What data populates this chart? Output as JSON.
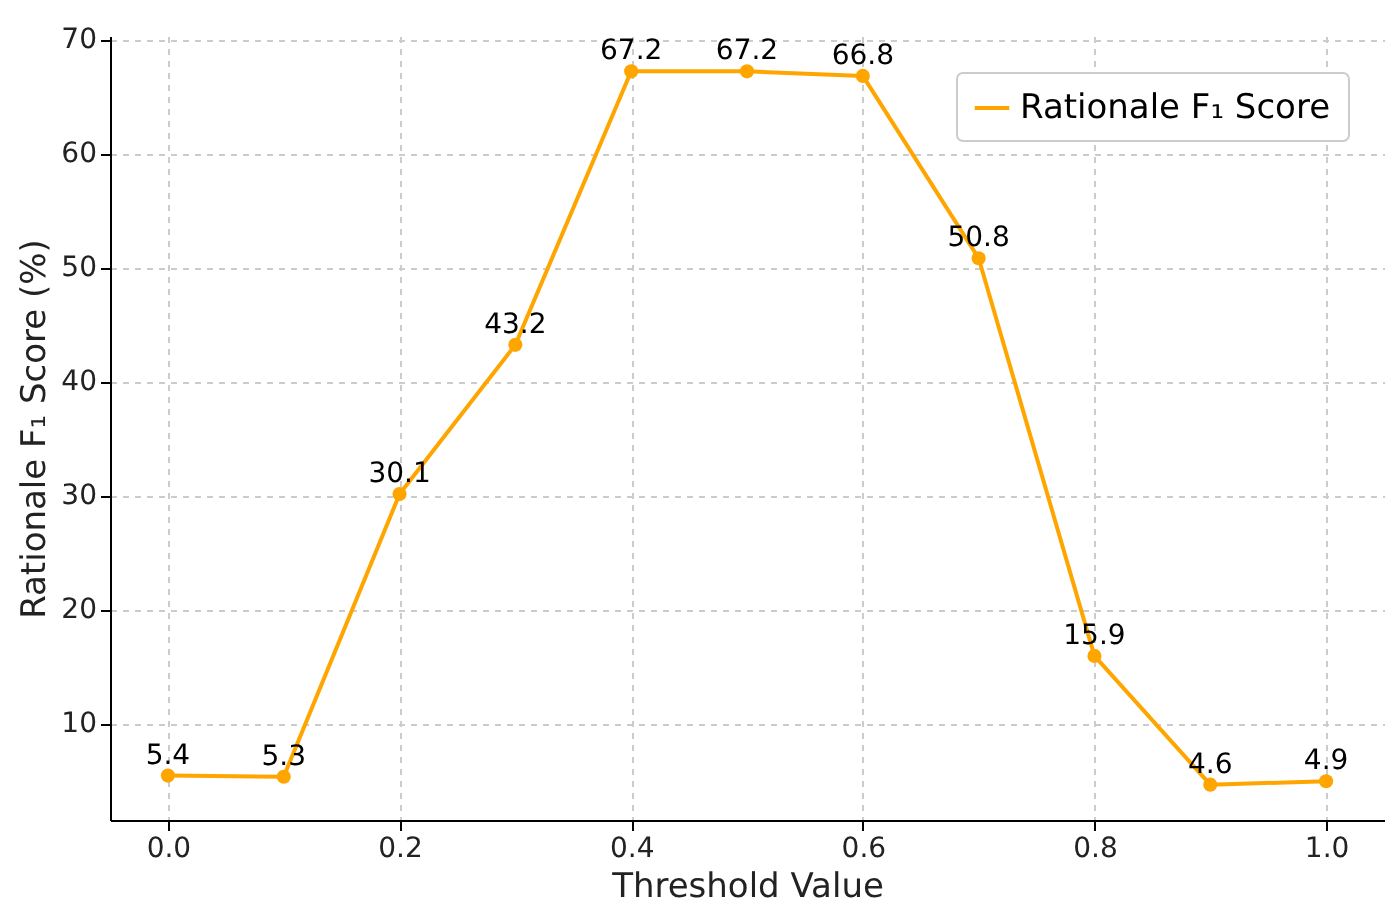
{
  "chart_data": {
    "type": "line",
    "xlabel": "Threshold Value",
    "ylabel": "Rationale F₁ Score (%)",
    "x": [
      0.0,
      0.1,
      0.2,
      0.3,
      0.4,
      0.5,
      0.6,
      0.7,
      0.8,
      0.9,
      1.0
    ],
    "series": [
      {
        "name": "Rationale F₁ Score",
        "color": "#ffa500",
        "values": [
          5.4,
          5.3,
          30.1,
          43.2,
          67.2,
          67.2,
          66.8,
          50.8,
          15.9,
          4.6,
          4.9
        ]
      }
    ],
    "xlim": [
      -0.05,
      1.05
    ],
    "ylim": [
      1.5,
      70.3
    ],
    "xticks": [
      {
        "value": 0,
        "label": "0.0"
      },
      0.2,
      0.4,
      0.6,
      0.8,
      {
        "value": 1,
        "label": "1.0"
      }
    ],
    "yticks": [
      10,
      20,
      30,
      40,
      50,
      60,
      70
    ],
    "grid": true,
    "legend": "top right",
    "marker": "circle",
    "line_style": "solid",
    "data_labels": true
  }
}
